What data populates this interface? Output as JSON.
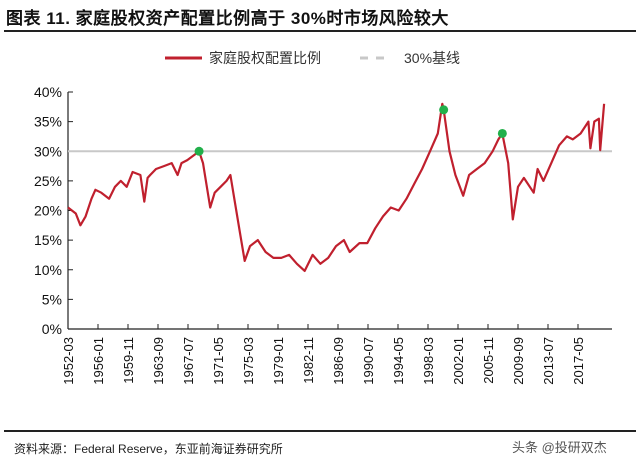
{
  "title": "图表 11. 家庭股权资产配置比例高于 30%时市场风险较大",
  "source": "资料来源：Federal Reserve，东亚前海证券研究所",
  "watermark": "头条 @投研双杰",
  "colors": {
    "series": "#c0202e",
    "baseline": "#c8c8c8",
    "marker": "#22b04b"
  },
  "chart_data": {
    "type": "line",
    "title": "",
    "xlabel": "",
    "ylabel": "",
    "ylim": [
      0,
      40
    ],
    "yticks": [
      "0%",
      "5%",
      "10%",
      "15%",
      "20%",
      "25%",
      "30%",
      "35%",
      "40%"
    ],
    "xticks": [
      "1952-03",
      "1956-01",
      "1959-11",
      "1963-09",
      "1967-07",
      "1971-05",
      "1975-03",
      "1979-01",
      "1982-11",
      "1986-09",
      "1990-07",
      "1994-05",
      "1998-03",
      "2002-01",
      "2005-11",
      "2009-09",
      "2013-07",
      "2017-05"
    ],
    "grid": false,
    "legend": "top-center",
    "series": [
      {
        "name": "家庭股权配置比例",
        "color": "#c0202e",
        "x": [
          "1952-03",
          "1952-09",
          "1953-03",
          "1953-10",
          "1954-06",
          "1955-03",
          "1955-09",
          "1956-06",
          "1957-06",
          "1958-03",
          "1958-12",
          "1959-09",
          "1960-06",
          "1961-06",
          "1961-12",
          "1962-05",
          "1962-09",
          "1963-06",
          "1964-06",
          "1965-06",
          "1966-03",
          "1966-09",
          "1967-06",
          "1968-06",
          "1968-12",
          "1969-06",
          "1970-05",
          "1970-12",
          "1971-09",
          "1972-06",
          "1972-12",
          "1973-06",
          "1974-03",
          "1974-10",
          "1975-06",
          "1976-06",
          "1977-06",
          "1978-06",
          "1979-06",
          "1980-06",
          "1981-06",
          "1982-06",
          "1983-06",
          "1984-06",
          "1985-06",
          "1986-06",
          "1987-06",
          "1988-03",
          "1989-06",
          "1990-06",
          "1991-06",
          "1992-06",
          "1993-06",
          "1994-06",
          "1995-06",
          "1996-06",
          "1997-06",
          "1998-06",
          "1999-06",
          "2000-01",
          "2000-03",
          "2000-12",
          "2001-09",
          "2002-09",
          "2003-06",
          "2004-06",
          "2005-06",
          "2006-06",
          "2007-03",
          "2007-09",
          "2008-06",
          "2009-01",
          "2009-09",
          "2010-06",
          "2011-09",
          "2012-03",
          "2012-12",
          "2013-12",
          "2014-12",
          "2015-12",
          "2016-09",
          "2017-09",
          "2018-09",
          "2018-12",
          "2019-06",
          "2020-01",
          "2020-03",
          "2020-09"
        ],
        "y": [
          20.5,
          20,
          19.5,
          17.5,
          19,
          22,
          23.5,
          23,
          22,
          24,
          25,
          24,
          26.5,
          26,
          21.5,
          25.5,
          26,
          27,
          27.5,
          28,
          26,
          28,
          28.5,
          29.5,
          30,
          28,
          20.5,
          23,
          24,
          25,
          26,
          22,
          16,
          11.5,
          14,
          15,
          13,
          12,
          12,
          12.5,
          11,
          9.8,
          12.5,
          11,
          12,
          14,
          15,
          13,
          14.5,
          14.5,
          17,
          19,
          20.5,
          20,
          22,
          24.5,
          27,
          30,
          33,
          38,
          37,
          30,
          26,
          22.5,
          26,
          27,
          28,
          30,
          32,
          33,
          28,
          18.5,
          24,
          25.5,
          23,
          27,
          25,
          28,
          31,
          32.5,
          32,
          33,
          35,
          30.5,
          35,
          35.5,
          30.2,
          38
        ]
      },
      {
        "name": "30%基线",
        "color": "#c8c8c8",
        "y": 30
      }
    ],
    "markers": [
      {
        "x": "1968-12",
        "y": 30
      },
      {
        "x": "2000-03",
        "y": 37
      },
      {
        "x": "2007-09",
        "y": 33
      }
    ]
  }
}
